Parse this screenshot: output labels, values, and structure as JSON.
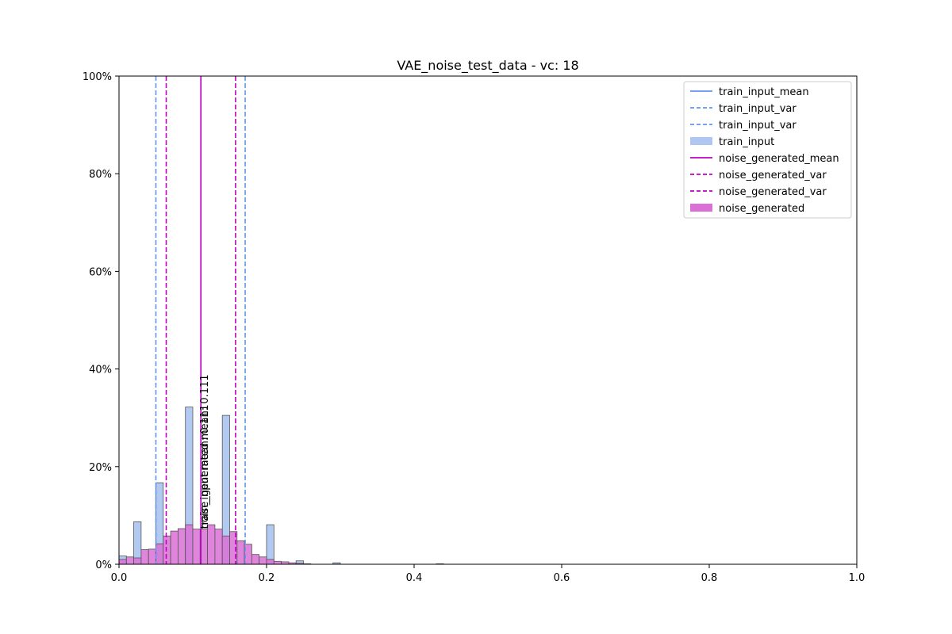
{
  "chart_data": {
    "type": "bar",
    "title": "VAE_noise_test_data - vc: 18",
    "xlabel": "",
    "ylabel": "",
    "xlim": [
      0,
      1.0
    ],
    "ylim": [
      0,
      1.0
    ],
    "x_ticks": [
      "0.0",
      "0.2",
      "0.4",
      "0.6",
      "0.8",
      "1.0"
    ],
    "y_ticks": [
      "0%",
      "20%",
      "40%",
      "60%",
      "80%",
      "100%"
    ],
    "grid": false,
    "legend_position": "top-right",
    "legend": [
      {
        "label": "train_input_mean",
        "kind": "line",
        "style": "solid",
        "color": "#6495ED"
      },
      {
        "label": "train_input_var",
        "kind": "line",
        "style": "dashed",
        "color": "#6495ED"
      },
      {
        "label": "train_input_var",
        "kind": "line",
        "style": "dashed",
        "color": "#6495ED"
      },
      {
        "label": "train_input",
        "kind": "patch",
        "color": "#AEC6F1"
      },
      {
        "label": "noise_generated_mean",
        "kind": "line",
        "style": "solid",
        "color": "#C000C0"
      },
      {
        "label": "noise_generated_var",
        "kind": "line",
        "style": "dashed",
        "color": "#C000C0"
      },
      {
        "label": "noise_generated_var",
        "kind": "line",
        "style": "dashed",
        "color": "#C000C0"
      },
      {
        "label": "noise_generated",
        "kind": "patch",
        "color": "#DA70D6"
      }
    ],
    "bin_width": 0.01,
    "series": [
      {
        "name": "train_input",
        "color": "#AEC6F1",
        "bins": [
          {
            "x": 0.0,
            "y": 0.017
          },
          {
            "x": 0.02,
            "y": 0.087
          },
          {
            "x": 0.05,
            "y": 0.167
          },
          {
            "x": 0.09,
            "y": 0.322
          },
          {
            "x": 0.14,
            "y": 0.305
          },
          {
            "x": 0.2,
            "y": 0.081
          },
          {
            "x": 0.24,
            "y": 0.007
          },
          {
            "x": 0.29,
            "y": 0.003
          },
          {
            "x": 0.43,
            "y": 0.001
          }
        ]
      },
      {
        "name": "noise_generated",
        "color": "#DA70D6",
        "bins": [
          {
            "x": 0.0,
            "y": 0.01
          },
          {
            "x": 0.01,
            "y": 0.015
          },
          {
            "x": 0.02,
            "y": 0.013
          },
          {
            "x": 0.03,
            "y": 0.03
          },
          {
            "x": 0.04,
            "y": 0.031
          },
          {
            "x": 0.05,
            "y": 0.042
          },
          {
            "x": 0.06,
            "y": 0.058
          },
          {
            "x": 0.07,
            "y": 0.068
          },
          {
            "x": 0.08,
            "y": 0.073
          },
          {
            "x": 0.09,
            "y": 0.081
          },
          {
            "x": 0.1,
            "y": 0.072
          },
          {
            "x": 0.11,
            "y": 0.072
          },
          {
            "x": 0.12,
            "y": 0.081
          },
          {
            "x": 0.13,
            "y": 0.072
          },
          {
            "x": 0.14,
            "y": 0.058
          },
          {
            "x": 0.15,
            "y": 0.067
          },
          {
            "x": 0.16,
            "y": 0.048
          },
          {
            "x": 0.17,
            "y": 0.041
          },
          {
            "x": 0.18,
            "y": 0.02
          },
          {
            "x": 0.19,
            "y": 0.015
          },
          {
            "x": 0.2,
            "y": 0.01
          },
          {
            "x": 0.21,
            "y": 0.006
          },
          {
            "x": 0.22,
            "y": 0.005
          },
          {
            "x": 0.23,
            "y": 0.003
          },
          {
            "x": 0.24,
            "y": 0.002
          },
          {
            "x": 0.25,
            "y": 0.001
          }
        ]
      }
    ],
    "vlines": [
      {
        "name": "train_input_mean",
        "x": 0.111,
        "style": "solid",
        "color": "#6495ED"
      },
      {
        "name": "train_input_var",
        "x": 0.05,
        "style": "dashed",
        "color": "#6495ED"
      },
      {
        "name": "train_input_var",
        "x": 0.171,
        "style": "dashed",
        "color": "#6495ED"
      },
      {
        "name": "noise_generated_mean",
        "x": 0.111,
        "style": "solid",
        "color": "#C000C0"
      },
      {
        "name": "noise_generated_var",
        "x": 0.064,
        "style": "dashed",
        "color": "#C000C0"
      },
      {
        "name": "noise_generated_var",
        "x": 0.158,
        "style": "dashed",
        "color": "#C000C0"
      }
    ],
    "annotations": [
      {
        "text": "train_input mean: 0.111",
        "x": 0.111,
        "y": 0.04
      },
      {
        "text": "noise_generated mean: 0.111",
        "x": 0.111,
        "y": 0.04
      }
    ]
  }
}
